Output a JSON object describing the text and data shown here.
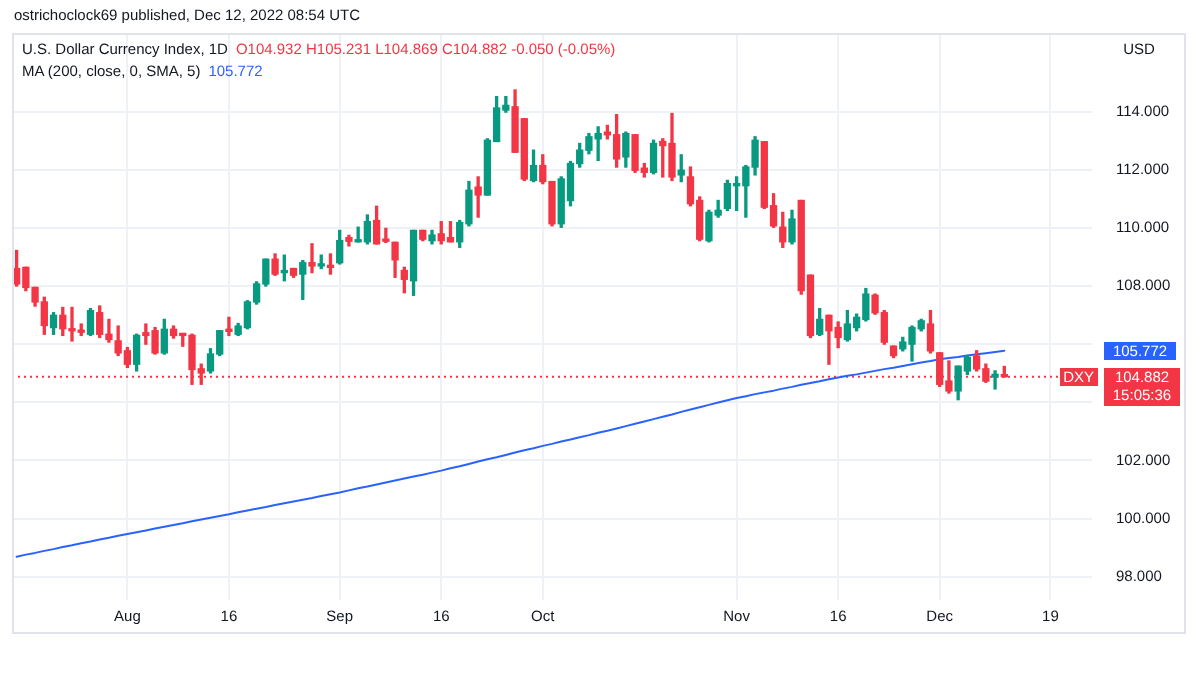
{
  "chart_data": {
    "type": "candlestick",
    "title": "U.S. Dollar Currency Index, 1D",
    "ylabel": "USD",
    "annotations": [
      "ostrichoclock69 published, Dec 12, 2022 08:54 UTC",
      "O104.932 H105.231 L104.869 C104.882 -0.050 (-0.05%)",
      "MA (200, close, 0, SMA, 5)",
      "105.772",
      "105.772",
      "DXY",
      "15:05:36"
    ],
    "categories": [
      null,
      null,
      null,
      null,
      null,
      null,
      null,
      null,
      null,
      null,
      null,
      null,
      "Aug",
      null,
      null,
      null,
      null,
      null,
      null,
      null,
      null,
      null,
      null,
      "16",
      null,
      null,
      null,
      null,
      null,
      null,
      null,
      null,
      null,
      null,
      null,
      "Sep",
      null,
      null,
      null,
      null,
      null,
      null,
      null,
      null,
      null,
      null,
      "16",
      null,
      null,
      null,
      null,
      null,
      null,
      null,
      null,
      null,
      null,
      "Oct",
      null,
      null,
      null,
      null,
      null,
      null,
      null,
      null,
      null,
      null,
      null,
      null,
      null,
      null,
      null,
      null,
      null,
      null,
      null,
      null,
      "Nov",
      null,
      null,
      null,
      null,
      null,
      null,
      null,
      null,
      null,
      null,
      "16",
      null,
      null,
      null,
      null,
      null,
      null,
      null,
      null,
      null,
      null,
      "Dec",
      null,
      null,
      null,
      null,
      null,
      null,
      null,
      null,
      null,
      null,
      null,
      "19",
      null,
      null,
      null,
      null
    ],
    "series": [
      {
        "ohlc": [
          [
            108.6,
            109.22,
            108.0,
            108.07
          ],
          [
            108.64,
            108.64,
            107.84,
            107.95
          ],
          [
            107.95,
            107.95,
            107.31,
            107.45
          ],
          [
            107.45,
            107.61,
            106.34,
            106.64
          ],
          [
            106.57,
            107.08,
            106.34,
            106.99
          ],
          [
            106.99,
            107.26,
            106.3,
            106.53
          ],
          [
            106.53,
            107.26,
            106.11,
            106.46
          ],
          [
            106.48,
            106.69,
            106.3,
            106.41
          ],
          [
            106.34,
            107.22,
            106.3,
            107.15
          ],
          [
            107.08,
            107.31,
            106.23,
            106.34
          ],
          [
            106.34,
            106.85,
            106.07,
            106.16
          ],
          [
            106.11,
            106.62,
            105.61,
            105.7
          ],
          [
            105.77,
            105.88,
            105.2,
            105.31
          ],
          [
            105.31,
            106.34,
            105.08,
            106.3
          ],
          [
            106.39,
            106.69,
            106.0,
            106.3
          ],
          [
            106.46,
            106.57,
            105.66,
            105.7
          ],
          [
            105.7,
            106.85,
            105.66,
            106.51
          ],
          [
            106.51,
            106.62,
            106.21,
            106.3
          ],
          [
            106.34,
            106.34,
            105.93,
            106.3
          ],
          [
            106.3,
            106.34,
            104.62,
            105.13
          ],
          [
            105.15,
            105.31,
            104.62,
            105.01
          ],
          [
            105.08,
            105.84,
            105.01,
            105.66
          ],
          [
            105.66,
            106.46,
            105.61,
            106.46
          ],
          [
            106.51,
            106.92,
            106.3,
            106.44
          ],
          [
            106.34,
            106.71,
            106.3,
            106.62
          ],
          [
            106.57,
            107.49,
            106.53,
            107.45
          ],
          [
            107.45,
            108.14,
            107.38,
            108.07
          ],
          [
            108.07,
            108.92,
            108.0,
            108.92
          ],
          [
            108.92,
            109.1,
            108.37,
            108.41
          ],
          [
            108.46,
            109.06,
            108.18,
            108.53
          ],
          [
            108.6,
            108.6,
            108.3,
            108.37
          ],
          [
            108.41,
            108.87,
            107.54,
            108.8
          ],
          [
            108.8,
            109.45,
            108.46,
            108.69
          ],
          [
            108.69,
            109.06,
            108.6,
            108.76
          ],
          [
            108.71,
            109.1,
            108.41,
            108.64
          ],
          [
            108.8,
            109.91,
            108.76,
            109.56
          ],
          [
            109.66,
            109.74,
            109.38,
            109.54
          ],
          [
            109.52,
            110.02,
            109.52,
            109.56
          ],
          [
            109.52,
            110.44,
            109.45,
            110.21
          ],
          [
            110.25,
            110.74,
            109.45,
            109.45
          ],
          [
            109.61,
            109.98,
            109.5,
            109.54
          ],
          [
            109.5,
            109.5,
            108.3,
            108.9
          ],
          [
            108.53,
            108.64,
            107.77,
            108.23
          ],
          [
            108.18,
            109.91,
            107.68,
            109.91
          ],
          [
            109.91,
            109.91,
            109.56,
            109.61
          ],
          [
            109.56,
            109.91,
            109.45,
            109.75
          ],
          [
            109.79,
            110.21,
            109.45,
            109.56
          ],
          [
            109.66,
            110.21,
            109.52,
            109.52
          ],
          [
            109.52,
            110.25,
            109.33,
            110.18
          ],
          [
            110.14,
            111.59,
            110.07,
            111.29
          ],
          [
            111.4,
            111.75,
            110.37,
            111.13
          ],
          [
            111.13,
            113.06,
            111.13,
            113.01
          ],
          [
            112.97,
            114.51,
            112.97,
            114.12
          ],
          [
            114.05,
            114.51,
            113.98,
            114.21
          ],
          [
            114.16,
            114.74,
            112.6,
            112.6
          ],
          [
            113.75,
            113.75,
            111.63,
            111.68
          ],
          [
            111.63,
            112.67,
            111.59,
            112.14
          ],
          [
            112.14,
            112.51,
            111.52,
            111.59
          ],
          [
            111.59,
            111.59,
            110.07,
            110.14
          ],
          [
            110.14,
            111.75,
            110.02,
            111.68
          ],
          [
            110.94,
            112.28,
            110.76,
            112.21
          ],
          [
            112.21,
            112.9,
            112.09,
            112.67
          ],
          [
            112.67,
            113.24,
            112.55,
            113.13
          ],
          [
            113.06,
            113.47,
            112.32,
            113.24
          ],
          [
            113.29,
            113.52,
            113.06,
            113.2
          ],
          [
            113.2,
            113.89,
            112.09,
            112.37
          ],
          [
            112.44,
            113.29,
            112.09,
            113.24
          ],
          [
            113.2,
            113.2,
            111.91,
            111.98
          ],
          [
            112.05,
            112.21,
            111.75,
            111.91
          ],
          [
            111.91,
            113.01,
            111.86,
            112.9
          ],
          [
            112.97,
            113.06,
            111.75,
            112.83
          ],
          [
            112.9,
            113.93,
            111.63,
            111.75
          ],
          [
            111.82,
            112.51,
            111.59,
            111.98
          ],
          [
            111.75,
            112.09,
            110.76,
            110.83
          ],
          [
            110.94,
            111.06,
            109.56,
            109.61
          ],
          [
            109.56,
            110.6,
            109.52,
            110.53
          ],
          [
            110.44,
            110.94,
            110.37,
            110.6
          ],
          [
            110.67,
            111.63,
            110.6,
            111.52
          ],
          [
            111.45,
            111.75,
            110.6,
            111.52
          ],
          [
            111.45,
            112.14,
            110.37,
            112.09
          ],
          [
            112.09,
            113.13,
            111.82,
            113.01
          ],
          [
            112.96,
            112.96,
            110.67,
            110.71
          ],
          [
            110.76,
            111.17,
            110.02,
            110.07
          ],
          [
            110.02,
            110.53,
            109.33,
            109.52
          ],
          [
            109.52,
            110.6,
            109.45,
            110.3
          ],
          [
            110.94,
            110.94,
            107.72,
            107.84
          ],
          [
            108.37,
            108.37,
            106.23,
            106.3
          ],
          [
            106.34,
            107.22,
            106.3,
            106.85
          ],
          [
            106.99,
            106.99,
            105.31,
            106.46
          ],
          [
            106.57,
            106.76,
            105.88,
            106.23
          ],
          [
            106.16,
            107.15,
            106.11,
            106.69
          ],
          [
            106.57,
            107.03,
            106.46,
            106.92
          ],
          [
            106.85,
            107.91,
            106.8,
            107.72
          ],
          [
            107.68,
            107.72,
            107.03,
            107.08
          ],
          [
            107.08,
            107.15,
            106.0,
            106.07
          ],
          [
            105.93,
            105.93,
            105.54,
            105.61
          ],
          [
            105.84,
            106.23,
            105.77,
            106.07
          ],
          [
            106.0,
            106.62,
            105.42,
            106.57
          ],
          [
            106.53,
            106.85,
            106.46,
            106.8
          ],
          [
            106.69,
            107.15,
            105.7,
            105.77
          ],
          [
            105.7,
            105.7,
            104.55,
            104.62
          ],
          [
            104.73,
            105.42,
            104.32,
            104.39
          ],
          [
            104.39,
            105.24,
            104.09,
            105.24
          ],
          [
            105.08,
            105.61,
            104.96,
            105.54
          ],
          [
            105.59,
            105.77,
            105.08,
            105.15
          ],
          [
            105.15,
            105.31,
            104.69,
            104.73
          ],
          [
            104.87,
            105.08,
            104.46,
            104.96
          ],
          [
            104.932,
            105.231,
            104.869,
            104.882
          ],
          null,
          null,
          null,
          null,
          null,
          null,
          null,
          null,
          null
        ],
        "colors": [
          "#f23645",
          "#f23645",
          "#f23645",
          "#f23645",
          "#089981",
          "#f23645",
          "#f23645",
          "#f23645",
          "#089981",
          "#f23645",
          "#f23645",
          "#f23645",
          "#f23645",
          "#089981",
          "#f23645",
          "#f23645",
          "#089981",
          "#f23645",
          "#f23645",
          "#f23645",
          "#f23645",
          "#089981",
          "#089981",
          "#f23645",
          "#089981",
          "#089981",
          "#089981",
          "#089981",
          "#f23645",
          "#089981",
          "#f23645",
          "#089981",
          "#f23645",
          "#089981",
          "#f23645",
          "#089981",
          "#f23645",
          "#089981",
          "#089981",
          "#f23645",
          "#f23645",
          "#f23645",
          "#f23645",
          "#089981",
          "#f23645",
          "#089981",
          "#f23645",
          "#f23645",
          "#089981",
          "#089981",
          "#f23645",
          "#089981",
          "#089981",
          "#089981",
          "#f23645",
          "#f23645",
          "#089981",
          "#f23645",
          "#f23645",
          "#089981",
          "#089981",
          "#089981",
          "#089981",
          "#089981",
          "#f23645",
          "#f23645",
          "#089981",
          "#f23645",
          "#f23645",
          "#089981",
          "#f23645",
          "#f23645",
          "#089981",
          "#f23645",
          "#f23645",
          "#089981",
          "#089981",
          "#089981",
          "#089981",
          "#089981",
          "#089981",
          "#f23645",
          "#f23645",
          "#f23645",
          "#089981",
          "#f23645",
          "#f23645",
          "#089981",
          "#f23645",
          "#f23645",
          "#089981",
          "#089981",
          "#089981",
          "#f23645",
          "#f23645",
          "#f23645",
          "#089981",
          "#089981",
          "#089981",
          "#f23645",
          "#f23645",
          "#f23645",
          "#089981",
          "#089981",
          "#f23645",
          "#f23645",
          "#089981",
          "#f23645",
          null,
          null,
          null,
          null,
          null,
          null,
          null,
          null,
          null
        ]
      },
      {
        "type": "line",
        "color": "#2962ff",
        "values": [
          98.69,
          98.76,
          98.82,
          98.89,
          98.95,
          99.02,
          99.08,
          99.15,
          99.21,
          99.28,
          99.34,
          99.41,
          99.47,
          99.53,
          99.59,
          99.66,
          99.72,
          99.78,
          99.84,
          99.91,
          99.97,
          100.03,
          100.09,
          100.15,
          100.22,
          100.28,
          100.34,
          100.4,
          100.47,
          100.53,
          100.59,
          100.65,
          100.71,
          100.78,
          100.84,
          100.9,
          100.97,
          101.04,
          101.1,
          101.17,
          101.24,
          101.31,
          101.38,
          101.45,
          101.51,
          101.58,
          101.65,
          101.73,
          101.8,
          101.88,
          101.96,
          102.04,
          102.11,
          102.19,
          102.27,
          102.35,
          102.42,
          102.5,
          102.57,
          102.65,
          102.72,
          102.8,
          102.87,
          102.95,
          103.02,
          103.1,
          103.18,
          103.26,
          103.34,
          103.42,
          103.5,
          103.58,
          103.67,
          103.75,
          103.83,
          103.91,
          103.99,
          104.07,
          104.15,
          104.21,
          104.28,
          104.34,
          104.4,
          104.47,
          104.53,
          104.6,
          104.66,
          104.72,
          104.79,
          104.85,
          104.91,
          104.96,
          105.02,
          105.08,
          105.14,
          105.19,
          105.25,
          105.31,
          105.37,
          105.42,
          105.48,
          105.52,
          105.56,
          105.61,
          105.65,
          105.69,
          105.73,
          105.772,
          null,
          null,
          null,
          null,
          null,
          null,
          null,
          null,
          null
        ]
      }
    ],
    "ylim": [
      97.2,
      116.7
    ],
    "yticks": [
      {
        "value": 98,
        "label": "98.000"
      },
      {
        "value": 100,
        "label": "100.000"
      },
      {
        "value": 102,
        "label": "102.000"
      },
      {
        "value": 104,
        "label": null
      },
      {
        "value": 106,
        "label": null
      },
      {
        "value": 108,
        "label": "108.000"
      },
      {
        "value": 110,
        "label": "110.000"
      },
      {
        "value": 112,
        "label": "112.000"
      },
      {
        "value": 114,
        "label": "114.000"
      }
    ],
    "ref_lines": [
      {
        "axis": "y",
        "value": 104.882,
        "label": "104.882",
        "color": "#f23645",
        "line_style": "dotted"
      }
    ],
    "grid": true
  }
}
